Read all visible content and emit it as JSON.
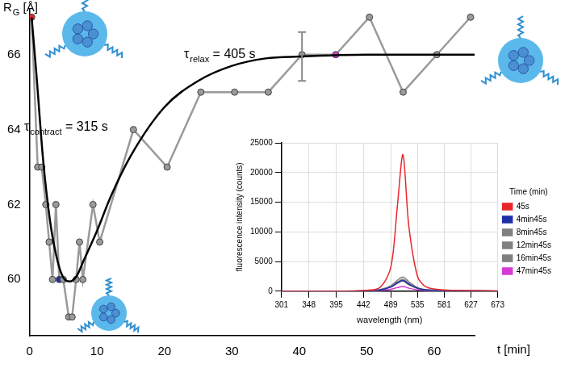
{
  "chart_data": [
    {
      "type": "scatter",
      "xlabel": "t [min]",
      "ylabel": {
        "text": "R",
        "subscript": "G",
        "suffix": " [Å]"
      },
      "xlim": [
        0,
        66
      ],
      "xticks": [
        0,
        10,
        20,
        30,
        40,
        50,
        60
      ],
      "ylim": [
        58.5,
        67.2
      ],
      "yticks": [
        60,
        62,
        64,
        66
      ],
      "grid": false,
      "annotations": [
        {
          "symbol": "τ",
          "subscript": "contract",
          "text": " = 315 s"
        },
        {
          "symbol": "τ",
          "subscript": "relax",
          "text": " = 405 s"
        }
      ],
      "series": [
        {
          "color": "#9a9a9a",
          "marker": "circle",
          "line_style": "solid",
          "x": [
            0.3,
            1.2,
            1.8,
            2.4,
            2.9,
            3.4,
            3.9,
            4.4,
            5.0,
            5.8,
            6.3,
            6.9,
            7.4,
            7.9,
            9.4,
            10.4,
            15.4,
            20.4,
            25.4,
            30.4,
            35.4,
            40.4,
            45.4,
            50.4,
            55.4,
            60.4,
            65.4
          ],
          "values": [
            67,
            63,
            63,
            62,
            61,
            60,
            62,
            60,
            60,
            59,
            59,
            60,
            61,
            60,
            62,
            61,
            64,
            63,
            65,
            65,
            65,
            66,
            66,
            67,
            65,
            66,
            67
          ],
          "colors": [
            "#e8262a",
            "#9a9a9a",
            "#9a9a9a",
            "#9a9a9a",
            "#9a9a9a",
            "#9a9a9a",
            "#9a9a9a",
            "#1f2fa8",
            "#9a9a9a",
            "#9a9a9a",
            "#9a9a9a",
            "#9a9a9a",
            "#9a9a9a",
            "#9a9a9a",
            "#9a9a9a",
            "#9a9a9a",
            "#9a9a9a",
            "#9a9a9a",
            "#9a9a9a",
            "#9a9a9a",
            "#9a9a9a",
            "#9a9a9a",
            "#d63bd6",
            "#9a9a9a",
            "#9a9a9a",
            "#9a9a9a",
            "#9a9a9a"
          ]
        },
        {
          "color": "#000000",
          "marker": "none",
          "line_style": "solid",
          "x": [
            0.3,
            1,
            2,
            3,
            4,
            5,
            6,
            7,
            8,
            10,
            12,
            15,
            20,
            25,
            30,
            35,
            40,
            50,
            66
          ],
          "values": [
            67,
            65.5,
            63.2,
            61.6,
            60.6,
            60.05,
            59.95,
            60.1,
            60.5,
            61.3,
            62.2,
            63.3,
            64.6,
            65.3,
            65.7,
            65.9,
            65.95,
            66,
            66
          ]
        }
      ],
      "error_bars": [
        {
          "x": 40.4,
          "low": 65.3,
          "high": 66.6
        }
      ]
    },
    {
      "type": "line",
      "xlabel": "wavelength (nm)",
      "ylabel": "fluorescence intensity (counts)",
      "legend_title": "Time (min)",
      "legend": "right",
      "grid": true,
      "xlim": [
        301,
        673
      ],
      "xticks": [
        301,
        348,
        395,
        442,
        489,
        535,
        581,
        627,
        673
      ],
      "ylim": [
        0,
        25000
      ],
      "yticks": [
        0,
        5000,
        10000,
        15000,
        20000,
        25000
      ],
      "x": [
        301,
        348,
        395,
        442,
        470,
        489,
        500,
        510,
        520,
        535,
        550,
        581,
        627,
        673
      ],
      "series": [
        {
          "name": "45s",
          "color": "#e8262a",
          "marker": "none",
          "line_style": "solid",
          "values": [
            0,
            0,
            0,
            100,
            600,
            4000,
            14000,
            23000,
            11000,
            2500,
            700,
            200,
            100,
            50
          ]
        },
        {
          "name": "4min45s",
          "color": "#1f2fa8",
          "marker": "none",
          "line_style": "solid",
          "values": [
            0,
            0,
            0,
            50,
            200,
            700,
            1400,
            1800,
            1200,
            500,
            200,
            80,
            40,
            20
          ]
        },
        {
          "name": "8min45s",
          "color": "#808080",
          "marker": "none",
          "line_style": "solid",
          "values": [
            0,
            0,
            0,
            50,
            250,
            900,
            1800,
            2400,
            1600,
            600,
            250,
            100,
            50,
            20
          ]
        },
        {
          "name": "12min45s",
          "color": "#808080",
          "marker": "none",
          "line_style": "solid",
          "values": [
            0,
            0,
            0,
            40,
            200,
            800,
            1500,
            2000,
            1300,
            500,
            200,
            80,
            40,
            20
          ]
        },
        {
          "name": "16min45s",
          "color": "#808080",
          "marker": "none",
          "line_style": "solid",
          "values": [
            0,
            0,
            0,
            40,
            180,
            700,
            1300,
            1700,
            1100,
            450,
            180,
            70,
            30,
            20
          ]
        },
        {
          "name": "47min45s",
          "color": "#d63bd6",
          "marker": "none",
          "line_style": "solid",
          "values": [
            0,
            0,
            0,
            30,
            100,
            300,
            600,
            800,
            500,
            200,
            80,
            40,
            20,
            10
          ]
        }
      ]
    }
  ]
}
